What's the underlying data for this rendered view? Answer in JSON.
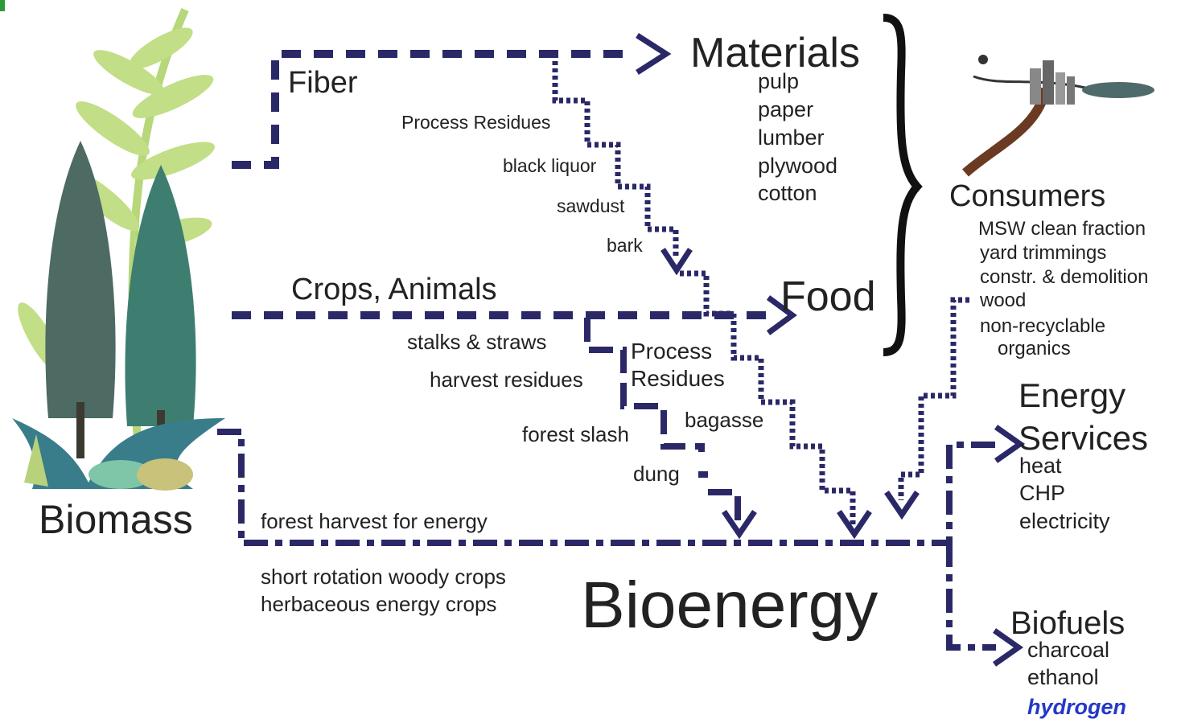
{
  "materials": {
    "label": "Materials",
    "items": [
      "pulp",
      "paper",
      "lumber",
      "plywood",
      "cotton"
    ]
  },
  "fiber": "Fiber",
  "fiber_residues": {
    "label": "Process Residues",
    "items": [
      "black liquor",
      "sawdust",
      "bark"
    ]
  },
  "crops": "Crops, Animals",
  "food": "Food",
  "crop_residues": [
    "stalks & straws",
    "harvest residues",
    "forest slash",
    "dung"
  ],
  "process_residues": [
    "Process",
    "Residues"
  ],
  "bagasse": "bagasse",
  "biomass": "Biomass",
  "energy_crops": {
    "direct": "forest harvest for energy",
    "items": [
      "short rotation woody crops",
      "herbaceous energy crops"
    ]
  },
  "bioenergy": "Bioenergy",
  "consumers": {
    "label": "Consumers",
    "items": [
      "MSW clean fraction",
      "yard trimmings",
      "constr. & demolition",
      "wood",
      "non-recyclable",
      "organics"
    ]
  },
  "energy_services": {
    "label": [
      "Energy",
      "Services"
    ],
    "items": [
      "heat",
      "CHP",
      "electricity"
    ]
  },
  "biofuels": {
    "label": "Biofuels",
    "items": [
      "charcoal",
      "ethanol",
      "hydrogen"
    ]
  }
}
